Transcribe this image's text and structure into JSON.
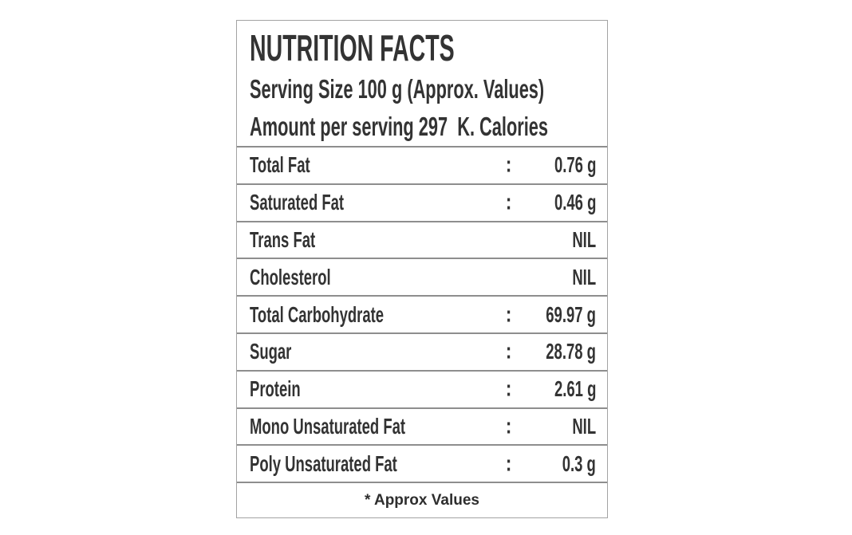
{
  "label": {
    "title": "NUTRITION FACTS",
    "serving_line": "Serving Size 100 g (Approx. Values)",
    "amount_line": "Amount per serving 297  K. Calories",
    "rows": [
      {
        "name": "Total Fat",
        "colon": ":",
        "value": "0.76 g"
      },
      {
        "name": "Saturated Fat",
        "colon": ":",
        "value": "0.46 g"
      },
      {
        "name": "Trans Fat",
        "colon": "",
        "value": "NIL"
      },
      {
        "name": "Cholesterol",
        "colon": "",
        "value": "NIL"
      },
      {
        "name": "Total Carbohydrate",
        "colon": ":",
        "value": "69.97 g"
      },
      {
        "name": "Sugar",
        "colon": ":",
        "value": "28.78 g"
      },
      {
        "name": "Protein",
        "colon": ":",
        "value": "2.61 g"
      },
      {
        "name": "Mono Unsaturated Fat",
        "colon": ":",
        "value": "NIL"
      },
      {
        "name": "Poly Unsaturated Fat",
        "colon": ":",
        "value": "0.3 g"
      }
    ],
    "footnote": "* Approx Values",
    "colors": {
      "text": "#333333",
      "outer_border": "#a3a3a3",
      "row_divider": "#8e8e8e",
      "background": "#ffffff"
    }
  }
}
